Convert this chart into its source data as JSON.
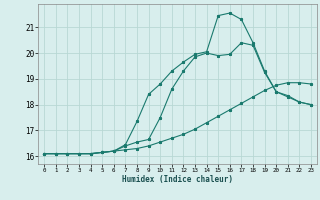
{
  "xlabel": "Humidex (Indice chaleur)",
  "ylabel": "",
  "bg_color": "#d8eeed",
  "grid_color": "#b8d8d4",
  "line_color": "#1a7a6e",
  "xlim": [
    -0.5,
    23.5
  ],
  "ylim": [
    15.7,
    21.9
  ],
  "xticks": [
    0,
    1,
    2,
    3,
    4,
    5,
    6,
    7,
    8,
    9,
    10,
    11,
    12,
    13,
    14,
    15,
    16,
    17,
    18,
    19,
    20,
    21,
    22,
    23
  ],
  "yticks": [
    16,
    17,
    18,
    19,
    20,
    21
  ],
  "line1_x": [
    0,
    1,
    2,
    3,
    4,
    5,
    6,
    7,
    8,
    9,
    10,
    11,
    12,
    13,
    14,
    15,
    16,
    17,
    18,
    19,
    20,
    21,
    22,
    23
  ],
  "line1_y": [
    16.1,
    16.1,
    16.1,
    16.1,
    16.1,
    16.15,
    16.2,
    16.25,
    16.3,
    16.4,
    16.55,
    16.7,
    16.85,
    17.05,
    17.3,
    17.55,
    17.8,
    18.05,
    18.3,
    18.55,
    18.75,
    18.85,
    18.85,
    18.8
  ],
  "line2_x": [
    0,
    1,
    2,
    3,
    4,
    5,
    6,
    7,
    8,
    9,
    10,
    11,
    12,
    13,
    14,
    15,
    16,
    17,
    18,
    19,
    20,
    21,
    22,
    23
  ],
  "line2_y": [
    16.1,
    16.1,
    16.1,
    16.1,
    16.1,
    16.15,
    16.2,
    16.4,
    16.55,
    16.65,
    17.5,
    18.6,
    19.3,
    19.85,
    20.0,
    19.9,
    19.95,
    20.4,
    20.3,
    19.25,
    18.5,
    18.3,
    18.1,
    18.0
  ],
  "line3_x": [
    0,
    1,
    2,
    3,
    4,
    5,
    6,
    7,
    8,
    9,
    10,
    11,
    12,
    13,
    14,
    15,
    16,
    17,
    18,
    19,
    20,
    21,
    22,
    23
  ],
  "line3_y": [
    16.1,
    16.1,
    16.1,
    16.1,
    16.1,
    16.15,
    16.2,
    16.45,
    17.35,
    18.4,
    18.8,
    19.3,
    19.65,
    19.95,
    20.05,
    21.45,
    21.55,
    21.3,
    20.4,
    19.3,
    18.5,
    18.35,
    18.1,
    18.0
  ]
}
